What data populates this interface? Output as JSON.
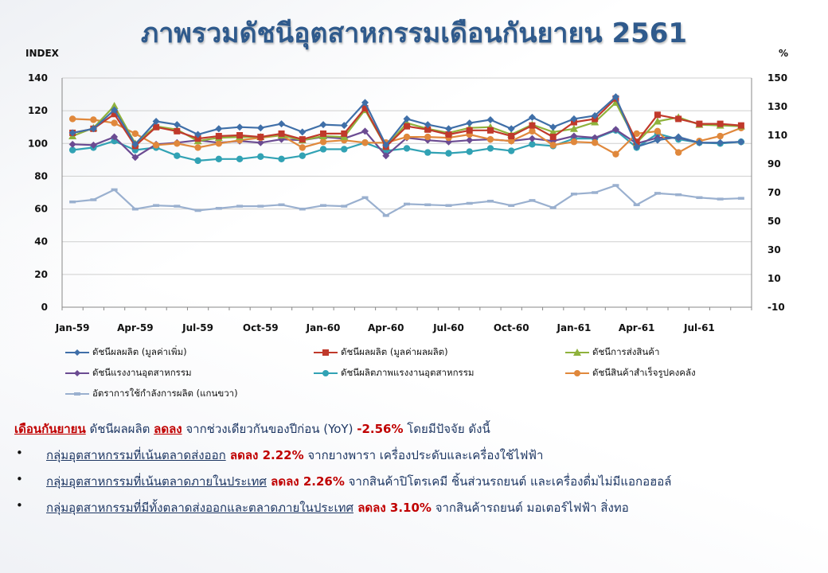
{
  "title": "ภาพรวมดัชนีอุตสาหกรรมเดือนกันยายน 2561",
  "colors": {
    "mpi_value_added": "#3f6fa8",
    "mpi_production_value": "#c0392b",
    "export_index": "#8fb23c",
    "labor_index": "#6b4b92",
    "labor_productivity": "#31a2b4",
    "inventory_index": "#e0883c",
    "capacity_utilization": "#9ab0cf",
    "title": "#2f5a8c",
    "highlight_red": "#c00000",
    "text_dark": "#1f3864"
  },
  "chart_data": {
    "type": "line",
    "left_axis": {
      "label": "INDEX",
      "range": [
        0,
        140
      ],
      "ticks": [
        "0",
        "20",
        "40",
        "60",
        "80",
        "100",
        "120",
        "140"
      ]
    },
    "right_axis": {
      "label": "%",
      "range": [
        -10,
        150
      ],
      "ticks": [
        "-10",
        "10",
        "30",
        "50",
        "70",
        "90",
        "110",
        "130",
        "150"
      ]
    },
    "x_tick_labels": [
      "Jan-59",
      "Apr-59",
      "Jul-59",
      "Oct-59",
      "Jan-60",
      "Apr-60",
      "Jul-60",
      "Oct-60",
      "Jan-61",
      "Apr-61",
      "Jul-61"
    ],
    "x_tick_every": 3,
    "grid": "horizontal",
    "legend_position": "bottom",
    "series": [
      {
        "name": "ดัชนีผลผลิต (มูลค่าเพิ่ม)",
        "axis": "left",
        "marker": "diamond",
        "color_key": "mpi_value_added",
        "values": [
          106.5,
          109,
          120.5,
          99.5,
          113.5,
          111.5,
          105.5,
          109,
          110,
          109.5,
          112,
          107,
          111.5,
          111,
          125,
          99,
          115,
          111.5,
          109,
          112.5,
          114.5,
          109,
          116,
          110,
          115,
          117,
          128.5,
          98,
          102,
          104,
          100.5,
          100.5,
          101
        ]
      },
      {
        "name": "ดัชนีผลผลิต (มูลค่าผลผลิต)",
        "axis": "left",
        "marker": "square",
        "color_key": "mpi_production_value",
        "values": [
          106.5,
          109,
          118,
          98.5,
          110,
          107.5,
          103,
          104.5,
          105,
          104,
          106,
          102.5,
          106,
          106,
          121.5,
          98,
          110.5,
          108.5,
          105.5,
          108,
          108,
          104.5,
          111,
          104,
          113,
          115,
          127.5,
          101,
          117.5,
          115,
          112,
          112,
          111
        ]
      },
      {
        "name": "ดัชนีการส่งสินค้า",
        "axis": "left",
        "marker": "triangle",
        "color_key": "export_index",
        "values": [
          104.5,
          109.5,
          123,
          100,
          110.5,
          108.5,
          101.5,
          103.5,
          104,
          104,
          105,
          102,
          104.5,
          104,
          120.5,
          98,
          112.5,
          109,
          106.5,
          109.5,
          110,
          105.5,
          111.5,
          107,
          109,
          113,
          125,
          100.5,
          113.5,
          116,
          111.5,
          111,
          110.5
        ]
      },
      {
        "name": "ดัชนีแรงงานอุตสาหกรรม",
        "axis": "left",
        "marker": "diamond",
        "color_key": "labor_index",
        "values": [
          99.5,
          99,
          104,
          91.5,
          99.5,
          100.5,
          102,
          100.5,
          101.5,
          100.5,
          102.5,
          102,
          104,
          103,
          107.5,
          92.5,
          103.5,
          102,
          101,
          102,
          102.5,
          101.5,
          103,
          101.5,
          104.5,
          103.5,
          108.5,
          100,
          103.5,
          103.5,
          100.5,
          100.5,
          101
        ]
      },
      {
        "name": "ดัชนีผลิตภาพแรงงานอุตสาหกรรม",
        "axis": "left",
        "marker": "circle",
        "color_key": "labor_productivity",
        "values": [
          96,
          97.5,
          101.5,
          96,
          97.5,
          92.5,
          89.5,
          90.5,
          90.5,
          92,
          90.5,
          92.5,
          96.5,
          96.5,
          100.5,
          95.5,
          97,
          94.5,
          94,
          95,
          97,
          95.5,
          99.5,
          98.5,
          103,
          103,
          108,
          97.5,
          106,
          102.5,
          100.5,
          100,
          101
        ]
      },
      {
        "name": "ดัชนีสินค้าสำเร็จรูปคงคลัง",
        "axis": "left",
        "marker": "circle",
        "color_key": "inventory_index",
        "values": [
          115,
          114.5,
          112.5,
          106,
          99,
          100,
          97.5,
          100,
          102,
          103.5,
          105,
          97.5,
          101,
          102,
          100.5,
          100.5,
          104,
          104,
          103.5,
          105.5,
          102.5,
          101.5,
          107.5,
          99,
          101,
          100.5,
          93.5,
          106,
          107.5,
          94.5,
          101.5,
          104.5,
          109.5
        ]
      },
      {
        "name": "อัตราการใช้กำลังการผลิต (แกนขวา)",
        "axis": "right",
        "marker": "dash",
        "color_key": "capacity_utilization",
        "values": [
          63.5,
          65,
          72,
          58.5,
          61,
          60.5,
          57.5,
          59,
          60.5,
          60.5,
          61.5,
          58.5,
          61,
          60.5,
          66.5,
          54,
          62,
          61.5,
          61,
          62.5,
          64,
          61,
          64.5,
          59.5,
          69,
          70,
          75,
          61.5,
          69.5,
          68.5,
          66.5,
          65.5,
          66
        ]
      }
    ]
  },
  "summary": {
    "prefix_underlined": "เดือนกันยายน",
    "text_1": " ดัชนีผลผลิต ",
    "change_word": "ลดลง",
    "text_2": " จากช่วงเดียวกันของปีก่อน (YoY) ",
    "yoy": "-2.56%",
    "text_3": " โดยมีปัจจัย ดังนี้"
  },
  "bullets": [
    {
      "group": "กลุ่มอุตสาหกรรมที่เน้นตลาดส่งออก",
      "change": " ลดลง 2.22%",
      "detail": " จากยางพารา เครื่องประดับและเครื่องใช้ไฟฟ้า"
    },
    {
      "group": "กลุ่มอุตสาหกรรมที่เน้นตลาดภายในประเทศ",
      "change": " ลดลง 2.26%",
      "detail": " จากสินค้าปิโตรเคมี ชิ้นส่วนรถยนต์ และเครื่องดื่มไม่มีแอกอฮอล์"
    },
    {
      "group": "กลุ่มอุตสาหกรรมที่มีทั้งตลาดส่งออกและตลาดภายในประเทศ",
      "change": " ลดลง 3.10%",
      "detail": " จากสินค้ารถยนต์ มอเตอร์ไฟฟ้า สิ่งทอ"
    }
  ]
}
